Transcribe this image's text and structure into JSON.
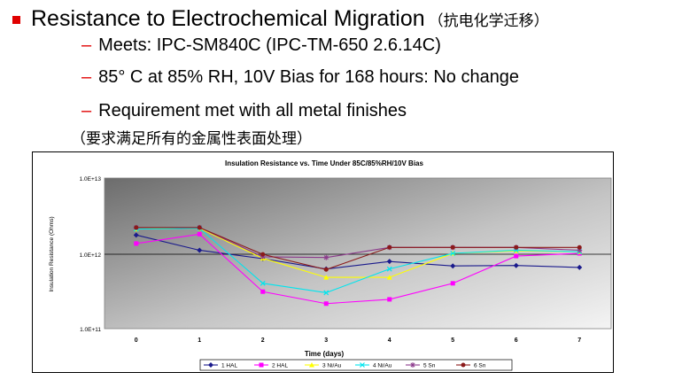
{
  "slide": {
    "bullet_title": "Resistance to Electrochemical Migration",
    "bullet_title_cn": "（抗电化学迁移）",
    "sub_items": [
      "Meets:  IPC-SM840C (IPC-TM-650 2.6.14C)",
      "85°  C at 85% RH, 10V Bias for 168 hours: No change",
      "Requirement met with all metal finishes"
    ],
    "sub_item_cn": "（要求满足所有的金属性表面处理）",
    "accent_color": "#e00000"
  },
  "chart_data": {
    "type": "line",
    "title": "Insulation Resistance vs. Time Under 85C/85%RH/10V Bias",
    "xlabel": "Time (days)",
    "ylabel": "Insulation Resistance (Ohms)",
    "x": [
      0,
      1,
      2,
      3,
      4,
      5,
      6,
      7
    ],
    "y_scale": "log",
    "ylim": [
      100000000000.0,
      10000000000000.0
    ],
    "y_ticks": [
      "1.0E+11",
      "1.0E+12",
      "1.0E+13"
    ],
    "grid": "major horizontal at 1.0E+12",
    "legend_position": "bottom",
    "series": [
      {
        "name": "1 HAL",
        "color": "#1a1a8c",
        "marker": "diamond",
        "values": [
          1750000000000.0,
          1100000000000.0,
          850000000000.0,
          620000000000.0,
          780000000000.0,
          680000000000.0,
          690000000000.0,
          650000000000.0
        ]
      },
      {
        "name": "2 HAL",
        "color": "#ff00ff",
        "marker": "square",
        "values": [
          1350000000000.0,
          1800000000000.0,
          310000000000.0,
          215000000000.0,
          245000000000.0,
          400000000000.0,
          920000000000.0,
          1000000000000.0
        ]
      },
      {
        "name": "3 Ni/Au",
        "color": "#ffff00",
        "marker": "triangle",
        "values": [
          2100000000000.0,
          2150000000000.0,
          860000000000.0,
          480000000000.0,
          480000000000.0,
          1000000000000.0,
          1080000000000.0,
          1050000000000.0
        ]
      },
      {
        "name": "4 Ni/Au",
        "color": "#00e5ee",
        "marker": "x",
        "values": [
          2100000000000.0,
          2150000000000.0,
          400000000000.0,
          300000000000.0,
          620000000000.0,
          1000000000000.0,
          1100000000000.0,
          1050000000000.0
        ]
      },
      {
        "name": "5 Sn",
        "color": "#8b3a8b",
        "marker": "star",
        "values": [
          2200000000000.0,
          2200000000000.0,
          900000000000.0,
          880000000000.0,
          1200000000000.0,
          1200000000000.0,
          1200000000000.0,
          1100000000000.0
        ]
      },
      {
        "name": "6 Sn",
        "color": "#8b1a1a",
        "marker": "circle",
        "values": [
          2200000000000.0,
          2200000000000.0,
          970000000000.0,
          610000000000.0,
          1200000000000.0,
          1200000000000.0,
          1200000000000.0,
          1200000000000.0
        ]
      }
    ]
  }
}
